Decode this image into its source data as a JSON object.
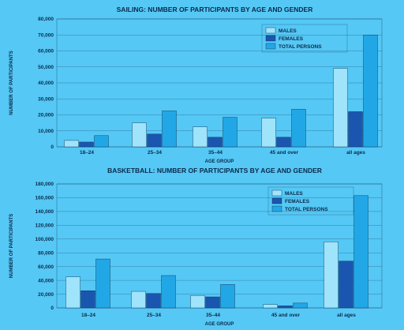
{
  "colors": {
    "background": "#55c8f5",
    "males": "#9fe4fb",
    "females": "#1a56b0",
    "total": "#22a7e6",
    "ink": "#0c2a4a"
  },
  "chart_data": [
    {
      "type": "bar",
      "title": "SAILING: NUMBER OF PARTICIPANTS BY AGE AND GENDER",
      "xlabel": "AGE GROUP",
      "ylabel": "NUMBER OF PARTICIPANTS",
      "categories": [
        "18–24",
        "25–34",
        "35–44",
        "45 and over",
        "all ages"
      ],
      "series": [
        {
          "name": "MALES",
          "values": [
            4000,
            15000,
            12500,
            18000,
            49000
          ]
        },
        {
          "name": "FEMALES",
          "values": [
            3000,
            8000,
            6000,
            6000,
            22000
          ]
        },
        {
          "name": "TOTAL PERSONS",
          "values": [
            7000,
            22500,
            18500,
            23500,
            70000
          ]
        }
      ],
      "ylim": [
        0,
        80000
      ],
      "yticks": [
        "0",
        "10,000",
        "20,000",
        "30,000",
        "40,000",
        "50,000",
        "60,000",
        "70,000",
        "80,000"
      ],
      "legend": "top-right",
      "grid": true
    },
    {
      "type": "bar",
      "title": "BASKETBALL: NUMBER OF PARTICIPANTS BY AGE AND GENDER",
      "xlabel": "AGE GROUP",
      "ylabel": "NUMBER OF PARTICIPANTS",
      "categories": [
        "18–24",
        "25–34",
        "35–44",
        "45 and over",
        "all ages"
      ],
      "series": [
        {
          "name": "MALES",
          "values": [
            45000,
            24000,
            18000,
            5000,
            96000
          ]
        },
        {
          "name": "FEMALES",
          "values": [
            25000,
            21000,
            16000,
            3000,
            68000
          ]
        },
        {
          "name": "TOTAL PERSONS",
          "values": [
            71000,
            47000,
            34000,
            7000,
            163000
          ]
        }
      ],
      "ylim": [
        0,
        180000
      ],
      "yticks": [
        "0",
        "20,000",
        "40,000",
        "60,000",
        "80,000",
        "100,000",
        "120,000",
        "140,000",
        "160,000",
        "180,000"
      ],
      "legend": "top-right",
      "grid": true
    }
  ]
}
